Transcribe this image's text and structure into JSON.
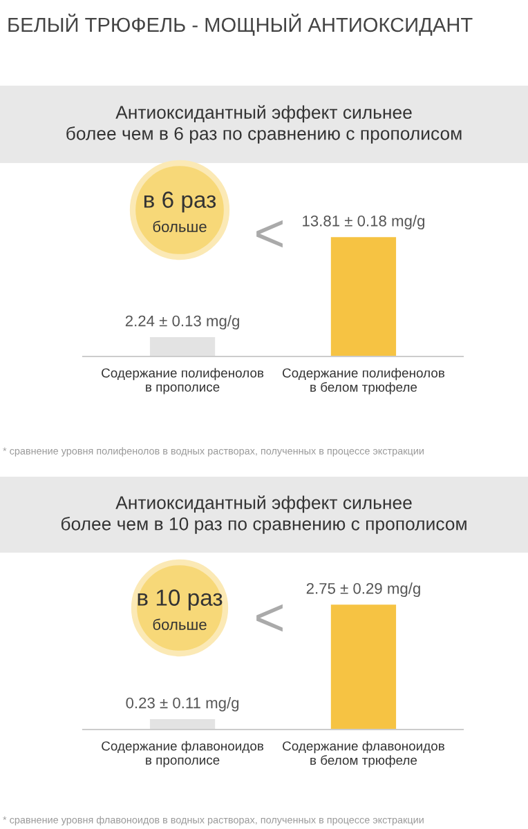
{
  "chart_data": [
    {
      "type": "bar",
      "title": "БЕЛЫЙ ТРЮФЕЛЬ - МОЩНЫЙ АНТИОКСИДАНТ",
      "subtitle": "Антиоксидантный эффект сильнее\nболее чем в 6 раз по сравнению с прополисом",
      "categories": [
        "Содержание полифенолов\nв прополисе",
        "Содержание полифенолов\nв белом трюфеле"
      ],
      "values": [
        2.24,
        13.81
      ],
      "colors": [
        "#e3e3e3",
        "#f6c343"
      ],
      "value_labels": [
        "2.24 ± 0.13 mg/g",
        "13.81 ± 0.18 mg/g"
      ],
      "tick_labels": "x",
      "grid": false,
      "legend": false,
      "annotations": [
        "в 6 раз",
        "больше",
        "<",
        "* сравнение уровня полифенолов в водных растворах, полученных в процессе экстракции"
      ]
    },
    {
      "type": "bar",
      "title": "Антиоксидантный эффект сильнее\nболее чем в 10 раз по сравнению с прополисом",
      "categories": [
        "Содержание флавоноидов\nв прополисе",
        "Содержание флавоноидов\nв белом трюфеле"
      ],
      "values": [
        0.23,
        2.75
      ],
      "colors": [
        "#e3e3e3",
        "#f6c343"
      ],
      "value_labels": [
        "0.23 ± 0.11 mg/g",
        "2.75 ± 0.29 mg/g"
      ],
      "tick_labels": "x",
      "grid": false,
      "legend": false,
      "annotations": [
        "в 10 раз",
        "больше",
        "<",
        "* сравнение уровня флавоноидов в водных растворах, полученных в процессе экстракции"
      ]
    }
  ]
}
